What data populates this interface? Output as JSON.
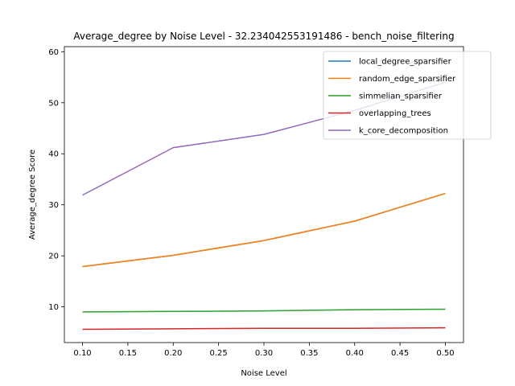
{
  "chart_data": {
    "type": "line",
    "title": "Average_degree by Noise Level - 32.234042553191486 - bench_noise_filtering",
    "xlabel": "Noise Level",
    "ylabel": "Average_degree Score",
    "x": [
      0.1,
      0.2,
      0.3,
      0.4,
      0.5
    ],
    "xlim": [
      0.08,
      0.52
    ],
    "ylim": [
      3.0,
      61.0
    ],
    "xticks": [
      0.1,
      0.15,
      0.2,
      0.25,
      0.3,
      0.35,
      0.4,
      0.45,
      0.5
    ],
    "xtick_labels": [
      "0.10",
      "0.15",
      "0.20",
      "0.25",
      "0.30",
      "0.35",
      "0.40",
      "0.45",
      "0.50"
    ],
    "yticks": [
      10,
      20,
      30,
      40,
      50,
      60
    ],
    "ytick_labels": [
      "10",
      "20",
      "30",
      "40",
      "50",
      "60"
    ],
    "grid": false,
    "legend_position": "top-right",
    "series": [
      {
        "name": "local_degree_sparsifier",
        "color": "#1f77b4",
        "values": [
          17.9,
          20.1,
          23.0,
          26.8,
          32.23
        ]
      },
      {
        "name": "random_edge_sparsifier",
        "color": "#ff7f0e",
        "values": [
          17.9,
          20.1,
          23.0,
          26.8,
          32.23
        ]
      },
      {
        "name": "simmelian_sparsifier",
        "color": "#2ca02c",
        "values": [
          9.0,
          9.1,
          9.2,
          9.45,
          9.55
        ]
      },
      {
        "name": "overlapping_trees",
        "color": "#d62728",
        "values": [
          5.6,
          5.7,
          5.8,
          5.8,
          5.9
        ]
      },
      {
        "name": "k_core_decomposition",
        "color": "#9467bd",
        "values": [
          31.9,
          41.2,
          43.8,
          48.5,
          54.0
        ]
      }
    ]
  }
}
